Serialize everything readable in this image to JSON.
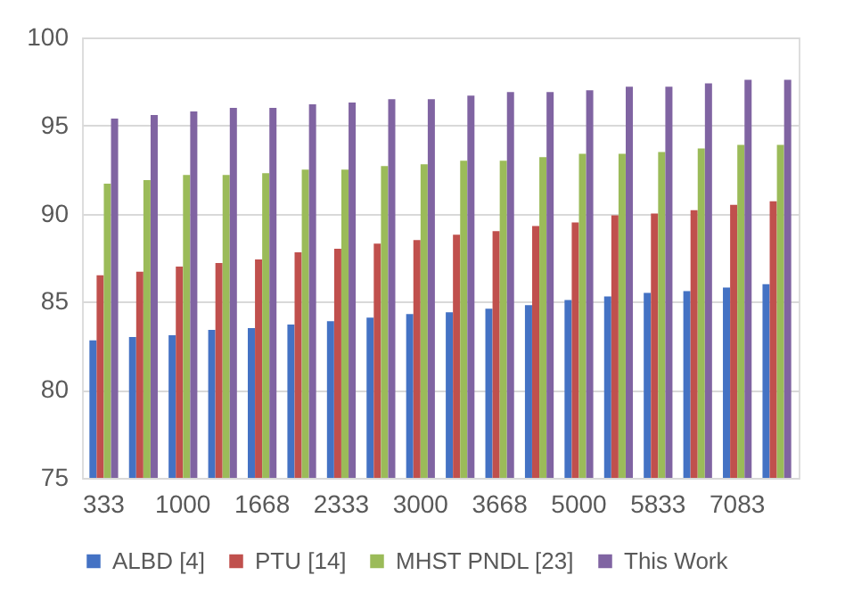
{
  "chart_data": {
    "type": "bar",
    "categories": [
      "333",
      null,
      "1000",
      null,
      "1668",
      null,
      "2333",
      null,
      "3000",
      null,
      "3668",
      null,
      "5000",
      null,
      "5833",
      null,
      "7083",
      null
    ],
    "series": [
      {
        "name": "ALBD [4]",
        "color": "#4472c4",
        "values": [
          82.8,
          83.0,
          83.1,
          83.4,
          83.5,
          83.7,
          83.9,
          84.1,
          84.3,
          84.4,
          84.6,
          84.8,
          85.1,
          85.3,
          85.5,
          85.6,
          85.8,
          86.0
        ]
      },
      {
        "name": "PTU [14]",
        "color": "#c0504d",
        "values": [
          86.5,
          86.7,
          87.0,
          87.2,
          87.4,
          87.8,
          88.0,
          88.3,
          88.5,
          88.8,
          89.0,
          89.3,
          89.5,
          89.9,
          90.0,
          90.2,
          90.5,
          90.7
        ]
      },
      {
        "name": "MHST PNDL [23]",
        "color": "#9bbb59",
        "values": [
          91.7,
          91.9,
          92.2,
          92.2,
          92.3,
          92.5,
          92.5,
          92.7,
          92.8,
          93.0,
          93.0,
          93.2,
          93.4,
          93.4,
          93.5,
          93.7,
          93.9,
          93.9
        ]
      },
      {
        "name": "This Work",
        "color": "#8064a2",
        "values": [
          95.4,
          95.6,
          95.8,
          96.0,
          96.0,
          96.2,
          96.3,
          96.5,
          96.5,
          96.7,
          96.9,
          96.9,
          97.0,
          97.2,
          97.2,
          97.4,
          97.6,
          97.6
        ]
      }
    ],
    "ylim": [
      75,
      100
    ],
    "yticks": [
      75,
      80,
      85,
      90,
      95,
      100
    ],
    "grid": "y",
    "legend": "bottom"
  }
}
